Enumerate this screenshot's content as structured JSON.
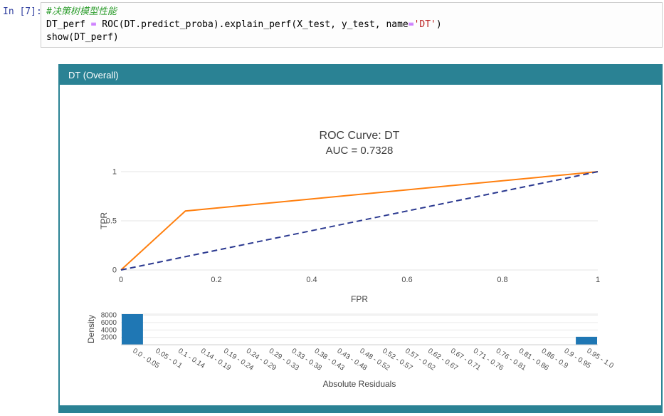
{
  "notebook": {
    "prompt": "In [7]:",
    "code_lines": [
      {
        "segments": [
          {
            "class": "comment",
            "text": "#决策树模型性能"
          }
        ]
      },
      {
        "segments": [
          {
            "class": "plain",
            "text": "DT_perf "
          },
          {
            "class": "op",
            "text": "="
          },
          {
            "class": "plain",
            "text": " ROC(DT.predict_proba).explain_perf(X_test, y_test, name"
          },
          {
            "class": "op",
            "text": "="
          },
          {
            "class": "string",
            "text": "'DT'"
          },
          {
            "class": "plain",
            "text": ")"
          }
        ]
      },
      {
        "segments": [
          {
            "class": "plain",
            "text": "show(DT_perf)"
          }
        ]
      }
    ]
  },
  "card": {
    "header_title": "DT (Overall)",
    "accent_color": "#2a8294"
  },
  "chart_data": [
    {
      "type": "line",
      "title": "ROC Curve: DT",
      "subtitle": "AUC = 0.7328",
      "xlabel": "FPR",
      "ylabel": "TPR",
      "xlim": [
        0,
        1
      ],
      "ylim": [
        0,
        1
      ],
      "xticks": [
        "0",
        "0.2",
        "0.4",
        "0.6",
        "0.8",
        "1"
      ],
      "xtick_values": [
        0,
        0.2,
        0.4,
        0.6,
        0.8,
        1
      ],
      "yticks": [
        "0",
        "0.5",
        "1"
      ],
      "ytick_values": [
        0,
        0.5,
        1
      ],
      "grid": true,
      "series": [
        {
          "name": "roc-curve",
          "color": "#ff7f0e",
          "dash": "solid",
          "x": [
            0,
            0.135,
            1
          ],
          "y": [
            0,
            0.6,
            1
          ]
        },
        {
          "name": "chance-diagonal",
          "color": "#2b3990",
          "dash": "dash",
          "x": [
            0,
            1
          ],
          "y": [
            0,
            1
          ]
        }
      ]
    },
    {
      "type": "bar",
      "xlabel": "Absolute Residuals",
      "ylabel": "Density",
      "bar_color": "#1f77b4",
      "ylim": [
        0,
        8300
      ],
      "yticks": [
        "2000",
        "4000",
        "6000",
        "8000"
      ],
      "ytick_values": [
        2000,
        4000,
        6000,
        8000
      ],
      "categories": [
        "0.0 - 0.05",
        "0.05 - 0.1",
        "0.1 - 0.14",
        "0.14 - 0.19",
        "0.19 - 0.24",
        "0.24 - 0.29",
        "0.29 - 0.33",
        "0.33 - 0.38",
        "0.38 - 0.43",
        "0.43 - 0.48",
        "0.48 - 0.52",
        "0.52 - 0.57",
        "0.57 - 0.62",
        "0.62 - 0.67",
        "0.67 - 0.71",
        "0.71 - 0.76",
        "0.76 - 0.81",
        "0.81 - 0.86",
        "0.86 - 0.9",
        "0.9 - 0.95",
        "0.95 - 1.0"
      ],
      "values": [
        8300,
        0,
        0,
        0,
        0,
        0,
        0,
        0,
        0,
        0,
        0,
        0,
        0,
        0,
        0,
        0,
        0,
        0,
        0,
        0,
        2150
      ]
    }
  ]
}
